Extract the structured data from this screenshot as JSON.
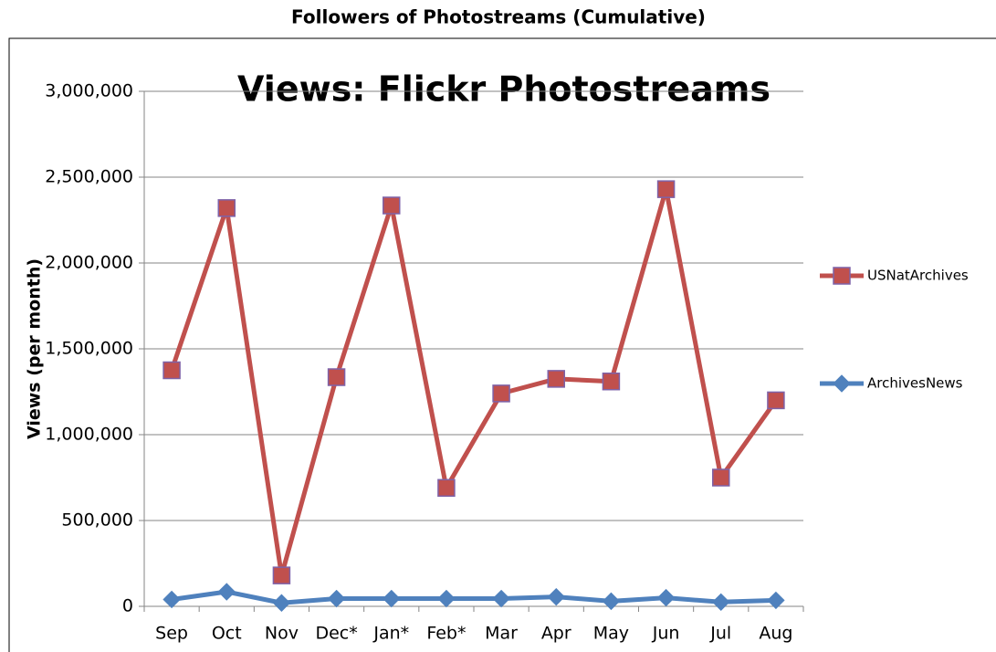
{
  "chart_data": {
    "type": "line",
    "heading": "Followers of Photostreams (Cumulative)",
    "title": "Views: Flickr Photostreams",
    "y_label": "Views (per month)",
    "categories": [
      "Sep",
      "Oct",
      "Nov",
      "Dec*",
      "Jan*",
      "Feb*",
      "Mar",
      "Apr",
      "May",
      "Jun",
      "Jul",
      "Aug"
    ],
    "series": [
      {
        "name": "USNatArchives",
        "color": "#c0504d",
        "marker": "square",
        "values": [
          1375000,
          2320000,
          180000,
          1335000,
          2335000,
          690000,
          1240000,
          1325000,
          1310000,
          2430000,
          750000,
          1200000
        ]
      },
      {
        "name": "ArchivesNews",
        "color": "#4f81bd",
        "marker": "diamond",
        "values": [
          40000,
          85000,
          20000,
          45000,
          45000,
          45000,
          45000,
          55000,
          30000,
          50000,
          25000,
          35000
        ]
      }
    ],
    "ylim": [
      0,
      3000000
    ],
    "yticks": [
      0,
      {
        "value": 500000,
        "label": "500,000"
      },
      {
        "value": 1000000,
        "label": "1,000,000"
      },
      {
        "value": 1500000,
        "label": "1,500,000"
      },
      {
        "value": 2000000,
        "label": "2,000,000"
      },
      {
        "value": 2500000,
        "label": "2,500,000"
      },
      {
        "value": 3000000,
        "label": "3,000,000"
      }
    ],
    "grid": true,
    "legend": "right"
  }
}
